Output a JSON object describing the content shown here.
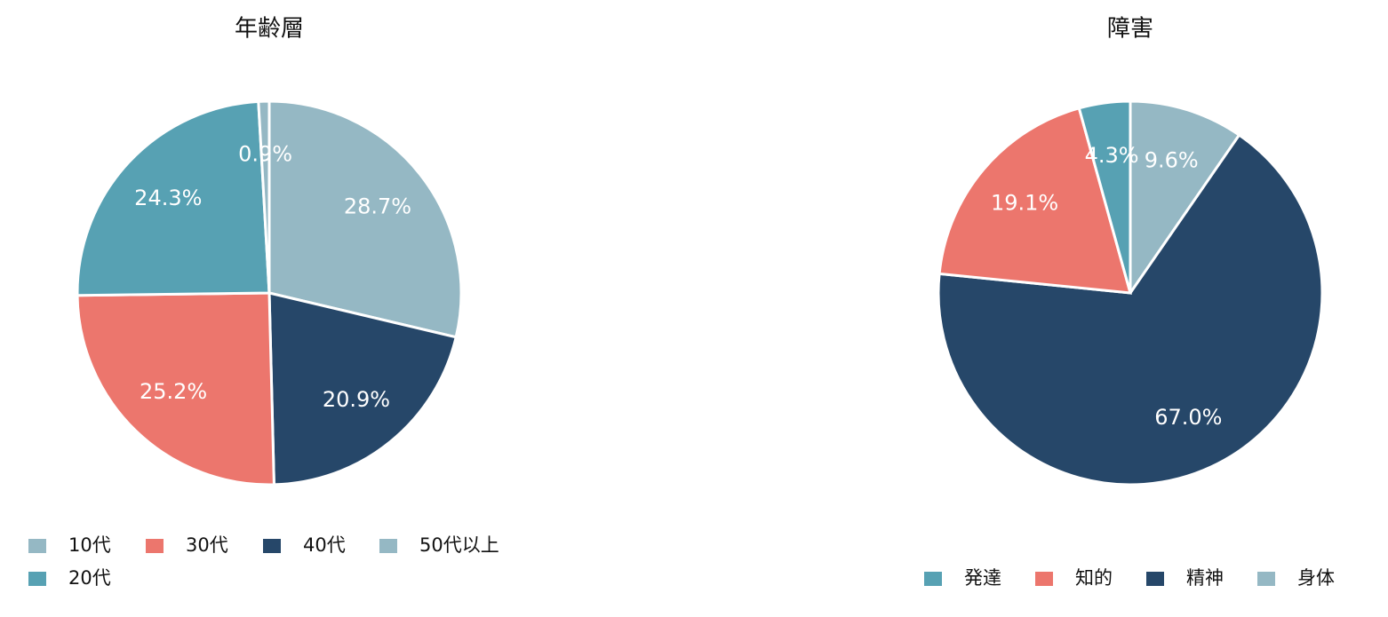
{
  "chart_data": [
    {
      "type": "pie",
      "title": "年齢層",
      "categories": [
        "10代",
        "40代",
        "30代",
        "20代",
        "50代以上"
      ],
      "values": [
        28.7,
        20.9,
        25.2,
        24.3,
        0.9
      ],
      "value_labels": [
        "28.7%",
        "20.9%",
        "25.2%",
        "24.3%",
        "0.9%"
      ],
      "colors": [
        "#95b8c4",
        "#264769",
        "#ec766d",
        "#57a1b3",
        "#95b8c4"
      ]
    },
    {
      "type": "pie",
      "title": "障害",
      "categories": [
        "身体",
        "精神",
        "知的",
        "発達"
      ],
      "values": [
        9.6,
        67.0,
        19.1,
        4.3
      ],
      "value_labels": [
        "9.6%",
        "67.0%",
        "19.1%",
        "4.3%"
      ],
      "colors": [
        "#95b8c4",
        "#264769",
        "#ec766d",
        "#57a1b3"
      ]
    }
  ]
}
